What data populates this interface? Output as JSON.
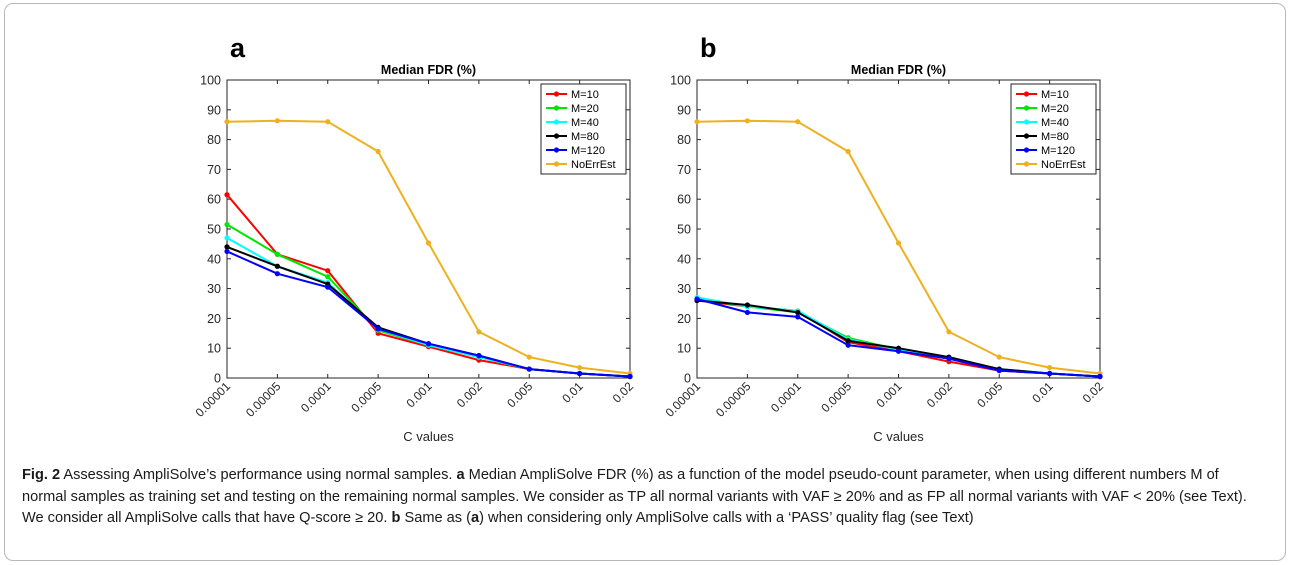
{
  "chart_data": [
    {
      "type": "line",
      "panel_letter": "a",
      "title": "Median FDR (%)",
      "xlabel": "C values",
      "ylabel": "",
      "categories": [
        "0.00001",
        "0.00005",
        "0.0001",
        "0.0005",
        "0.001",
        "0.002",
        "0.005",
        "0.01",
        "0.02"
      ],
      "ylim": [
        0,
        100
      ],
      "yticks": [
        "0",
        "10",
        "20",
        "30",
        "40",
        "50",
        "60",
        "70",
        "80",
        "90",
        "100"
      ],
      "legend_position": "top-right",
      "grid": false,
      "series": [
        {
          "name": "M=10",
          "color": "#ff0000",
          "values": [
            61.5,
            41.5,
            36,
            15,
            10.5,
            6,
            3,
            1.5,
            0.5
          ]
        },
        {
          "name": "M=20",
          "color": "#00e600",
          "values": [
            51.5,
            41.5,
            34,
            16,
            11,
            7,
            3,
            1.5,
            0.5
          ]
        },
        {
          "name": "M=40",
          "color": "#00ffff",
          "values": [
            47,
            37.5,
            32,
            16.5,
            11,
            7,
            3,
            1.5,
            0.5
          ]
        },
        {
          "name": "M=80",
          "color": "#000000",
          "values": [
            44,
            37.5,
            31.5,
            17,
            11.5,
            7.5,
            3,
            1.5,
            0.5
          ]
        },
        {
          "name": "M=120",
          "color": "#0000ff",
          "values": [
            42.5,
            35,
            30.5,
            16.5,
            11.5,
            7.5,
            3,
            1.5,
            0.5
          ]
        },
        {
          "name": "NoErrEst",
          "color": "#edb120",
          "values": [
            86,
            86.3,
            86,
            76,
            45.3,
            15.5,
            7,
            3.5,
            1.5
          ]
        }
      ]
    },
    {
      "type": "line",
      "panel_letter": "b",
      "title": "Median FDR (%)",
      "xlabel": "C values",
      "ylabel": "",
      "categories": [
        "0.00001",
        "0.00005",
        "0.0001",
        "0.0005",
        "0.001",
        "0.002",
        "0.005",
        "0.01",
        "0.02"
      ],
      "ylim": [
        0,
        100
      ],
      "yticks": [
        "0",
        "10",
        "20",
        "30",
        "40",
        "50",
        "60",
        "70",
        "80",
        "90",
        "100"
      ],
      "legend_position": "top-right",
      "grid": false,
      "series": [
        {
          "name": "M=10",
          "color": "#ff0000",
          "values": [
            26,
            24,
            22.5,
            12,
            9,
            5.5,
            2.5,
            1.5,
            0.5
          ]
        },
        {
          "name": "M=20",
          "color": "#00e600",
          "values": [
            26.5,
            24,
            22,
            13.5,
            9.5,
            6.5,
            3,
            1.5,
            0.5
          ]
        },
        {
          "name": "M=40",
          "color": "#00ffff",
          "values": [
            27,
            24,
            22.5,
            13,
            9.5,
            6.5,
            3,
            1.5,
            0.5
          ]
        },
        {
          "name": "M=80",
          "color": "#000000",
          "values": [
            26,
            24.5,
            22,
            12.5,
            10,
            7,
            3,
            1.5,
            0.5
          ]
        },
        {
          "name": "M=120",
          "color": "#0000ff",
          "values": [
            26.5,
            22,
            20.5,
            11,
            9,
            6.5,
            2.5,
            1.5,
            0.5
          ]
        },
        {
          "name": "NoErrEst",
          "color": "#edb120",
          "values": [
            86,
            86.3,
            86,
            76,
            45.3,
            15.5,
            7,
            3.5,
            1.5
          ]
        }
      ]
    }
  ],
  "caption": {
    "fig_label": "Fig. 2",
    "segments": [
      {
        "b": false,
        "t": " Assessing AmpliSolve’s performance using normal samples. "
      },
      {
        "b": true,
        "t": "a"
      },
      {
        "b": false,
        "t": " Median AmpliSolve FDR (%) as a function of the model pseudo-count parameter, when using different numbers M of normal samples as training set and testing on the remaining normal samples. We consider as TP all normal variants with VAF ≥ 20% and as FP all normal variants with VAF < 20% (see Text). We consider all AmpliSolve calls that have Q-score ≥ 20. "
      },
      {
        "b": true,
        "t": "b"
      },
      {
        "b": false,
        "t": " Same as ("
      },
      {
        "b": true,
        "t": "a"
      },
      {
        "b": false,
        "t": ") when considering only AmpliSolve calls with a ‘PASS’ quality flag (see Text)"
      }
    ]
  }
}
